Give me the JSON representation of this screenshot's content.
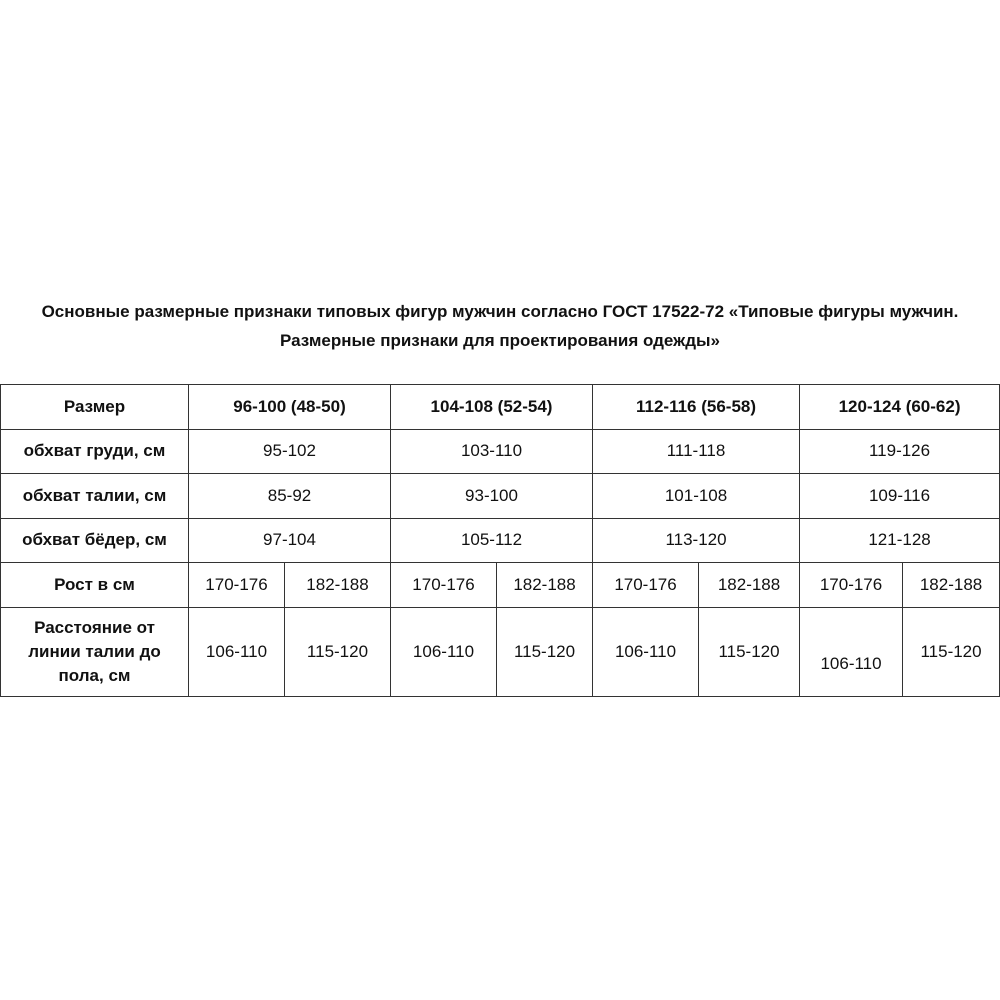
{
  "title": {
    "line1": "Основные размерные признаки типовых фигур мужчин согласно ГОСТ 17522-72 «Типовые фигуры мужчин.",
    "line2": "Размерные признаки для проектирования одежды»"
  },
  "table": {
    "header": {
      "label": "Размер",
      "sizes": [
        "96-100 (48-50)",
        "104-108 (52-54)",
        "112-116 (56-58)",
        "120-124 (60-62)"
      ]
    },
    "chest": {
      "label": "обхват груди, см",
      "values": [
        "95-102",
        "103-110",
        "111-118",
        "119-126"
      ]
    },
    "waist": {
      "label": "обхват талии, см",
      "values": [
        "85-92",
        "93-100",
        "101-108",
        "109-116"
      ]
    },
    "hips": {
      "label": "обхват бёдер, см",
      "values": [
        "97-104",
        "105-112",
        "113-120",
        "121-128"
      ]
    },
    "height": {
      "label": "Рост в см",
      "values": [
        "170-176",
        "182-188",
        "170-176",
        "182-188",
        "170-176",
        "182-188",
        "170-176",
        "182-188"
      ]
    },
    "waist_to_floor": {
      "label_lines": [
        "Расстояние от",
        "линии талии до",
        "пола, см"
      ],
      "values": [
        "106-110",
        "115-120",
        "106-110",
        "115-120",
        "106-110",
        "115-120",
        "106-110",
        "115-120"
      ]
    }
  }
}
